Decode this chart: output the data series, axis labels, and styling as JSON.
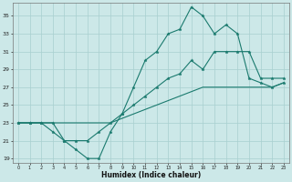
{
  "xlabel": "Humidex (Indice chaleur)",
  "bg_color": "#cce8e8",
  "grid_color": "#a8cfcf",
  "line_color": "#1a7a6e",
  "xlim": [
    -0.5,
    23.5
  ],
  "ylim": [
    18.5,
    36.5
  ],
  "yticks": [
    19,
    21,
    23,
    25,
    27,
    29,
    31,
    33,
    35
  ],
  "xticks": [
    0,
    1,
    2,
    3,
    4,
    5,
    6,
    7,
    8,
    9,
    10,
    11,
    12,
    13,
    14,
    15,
    16,
    17,
    18,
    19,
    20,
    21,
    22,
    23
  ],
  "line_top_x": [
    0,
    1,
    2,
    3,
    4,
    5,
    6,
    7,
    8,
    9,
    10,
    11,
    12,
    13,
    14,
    15,
    16,
    17,
    18,
    19,
    20,
    21,
    22,
    23
  ],
  "line_top_y": [
    23,
    23,
    23,
    22,
    21,
    20,
    19,
    19,
    22,
    24,
    27,
    30,
    31,
    33,
    33.5,
    36,
    35,
    33,
    34,
    33,
    28,
    27.5,
    27,
    27.5
  ],
  "line_mid_x": [
    0,
    1,
    2,
    3,
    4,
    5,
    6,
    7,
    8,
    9,
    10,
    11,
    12,
    13,
    14,
    15,
    16,
    17,
    18,
    19,
    20,
    21,
    22,
    23
  ],
  "line_mid_y": [
    23,
    23,
    23,
    23,
    21,
    21,
    21,
    22,
    23,
    24,
    25,
    26,
    27,
    28,
    28.5,
    30,
    29,
    31,
    31,
    31,
    31,
    28,
    28,
    28
  ],
  "line_bot_x": [
    0,
    1,
    2,
    3,
    4,
    5,
    6,
    7,
    8,
    9,
    10,
    11,
    12,
    13,
    14,
    15,
    16,
    17,
    18,
    19,
    20,
    21,
    22,
    23
  ],
  "line_bot_y": [
    23,
    23,
    23,
    23,
    23,
    23,
    23,
    23,
    23,
    23.5,
    24,
    24.5,
    25,
    25.5,
    26,
    26.5,
    27,
    27,
    27,
    27,
    27,
    27,
    27,
    27.5
  ]
}
